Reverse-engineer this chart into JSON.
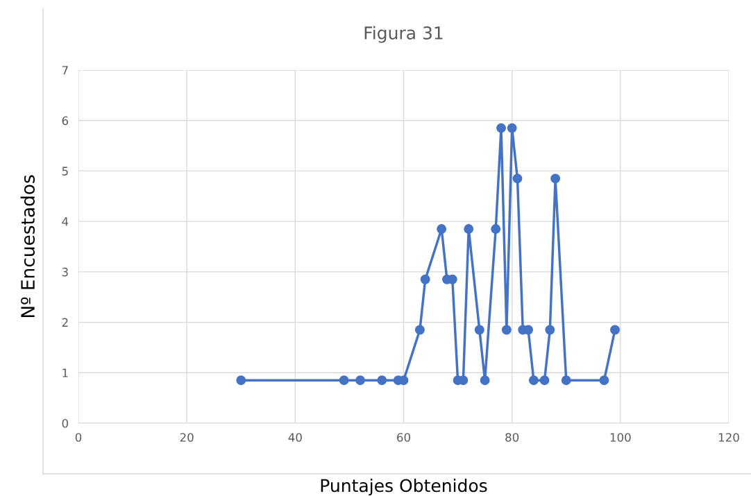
{
  "chart_data": {
    "type": "line",
    "title": "Figura 31",
    "xlabel": "Puntajes Obtenidos",
    "ylabel": "Nº Encuestados",
    "x": [
      30,
      49,
      52,
      56,
      59,
      60,
      63,
      64,
      67,
      68,
      69,
      70,
      71,
      72,
      74,
      75,
      77,
      78,
      79,
      80,
      81,
      82,
      83,
      84,
      86,
      87,
      88,
      90,
      97,
      99
    ],
    "series": [
      {
        "color": "#4472c4",
        "values": [
          0.85,
          0.85,
          0.85,
          0.85,
          0.85,
          0.85,
          1.85,
          2.85,
          3.85,
          2.85,
          2.85,
          0.85,
          0.85,
          3.85,
          1.85,
          0.85,
          3.85,
          5.85,
          1.85,
          5.85,
          4.85,
          1.85,
          1.85,
          0.85,
          0.85,
          1.85,
          4.85,
          0.85,
          0.85,
          1.85
        ]
      }
    ],
    "xlim": [
      0,
      120
    ],
    "xticks": [
      0,
      20,
      40,
      60,
      80,
      100,
      120
    ],
    "ylim": [
      0,
      7
    ],
    "yticks": [
      0,
      1,
      2,
      3,
      4,
      5,
      6,
      7
    ],
    "grid": true,
    "marker": "circle",
    "line_style": "solid"
  }
}
